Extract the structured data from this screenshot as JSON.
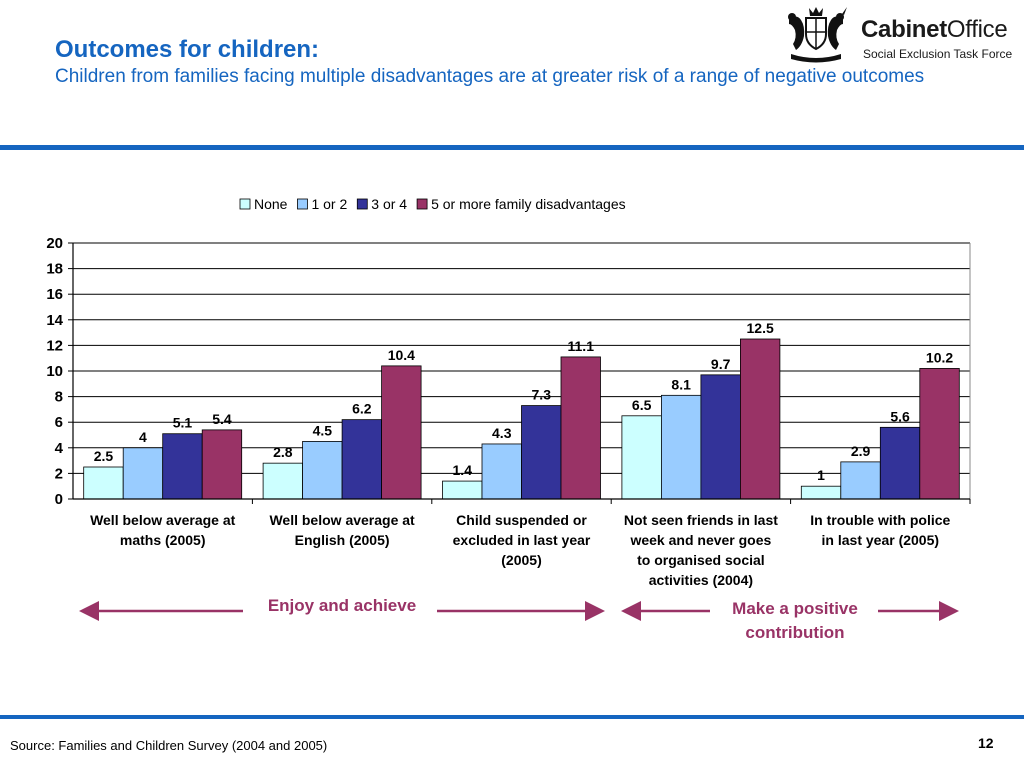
{
  "header": {
    "title": "Outcomes for children:",
    "subtitle": "Children from families facing multiple disadvantages are at greater risk of a range of negative outcomes"
  },
  "logo": {
    "brand_bold": "Cabinet",
    "brand_regular": "Office",
    "subtitle": "Social Exclusion Task Force"
  },
  "chart_data": {
    "type": "bar",
    "categories": [
      [
        "Well below average at",
        "maths (2005)"
      ],
      [
        "Well below average at",
        "English (2005)"
      ],
      [
        "Child suspended or",
        "excluded in last year",
        "(2005)"
      ],
      [
        "Not seen friends in last",
        "week and never goes",
        "to organised social",
        "activities (2004)"
      ],
      [
        "In trouble with police",
        "in last year (2005)"
      ]
    ],
    "series": [
      {
        "name": "None",
        "color": "#ccffff",
        "values": [
          2.5,
          2.8,
          1.4,
          6.5,
          1
        ]
      },
      {
        "name": "1 or 2",
        "color": "#99ccff",
        "values": [
          4,
          4.5,
          4.3,
          8.1,
          2.9
        ]
      },
      {
        "name": "3 or 4",
        "color": "#333399",
        "values": [
          5.1,
          6.2,
          7.3,
          9.7,
          5.6
        ]
      },
      {
        "name": "5 or more family disadvantages",
        "color": "#993366",
        "values": [
          5.4,
          10.4,
          11.1,
          12.5,
          10.2
        ]
      }
    ],
    "ylim": [
      0,
      20
    ],
    "yticks": [
      "0",
      "2",
      "4",
      "6",
      "8",
      "10",
      "12",
      "14",
      "16",
      "18",
      "20"
    ],
    "grid": true,
    "legend_position": "top",
    "groupings": [
      {
        "label": "Enjoy and achieve",
        "from": 0,
        "to": 2
      },
      {
        "label": "Make a positive contribution",
        "label_lines": [
          "Make a positive",
          "contribution"
        ],
        "from": 3,
        "to": 4
      }
    ],
    "grouping_color": "#993366"
  },
  "footer": {
    "source": "Source: Families and Children Survey (2004 and 2005)",
    "page": "12"
  }
}
